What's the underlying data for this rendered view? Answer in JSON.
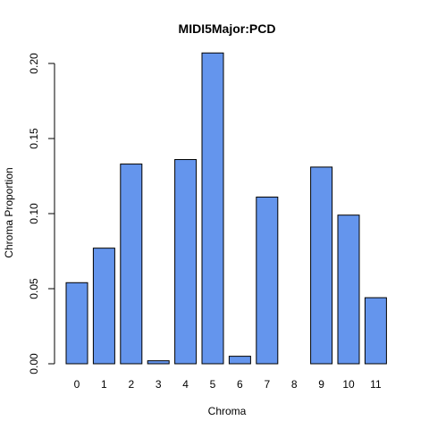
{
  "chart_data": {
    "type": "bar",
    "title": "MIDI5Major:PCD",
    "xlabel": "Chroma",
    "ylabel": "Chroma Proportion",
    "categories": [
      "0",
      "1",
      "2",
      "3",
      "4",
      "5",
      "6",
      "7",
      "8",
      "9",
      "10",
      "11"
    ],
    "values": [
      0.054,
      0.077,
      0.133,
      0.002,
      0.136,
      0.207,
      0.005,
      0.111,
      0.0,
      0.131,
      0.099,
      0.044
    ],
    "ylim": [
      0,
      0.2
    ],
    "yticks": [
      "0.00",
      "0.05",
      "0.10",
      "0.15",
      "0.20"
    ],
    "bar_color": "#6495ED",
    "grid": false,
    "legend": "none"
  }
}
